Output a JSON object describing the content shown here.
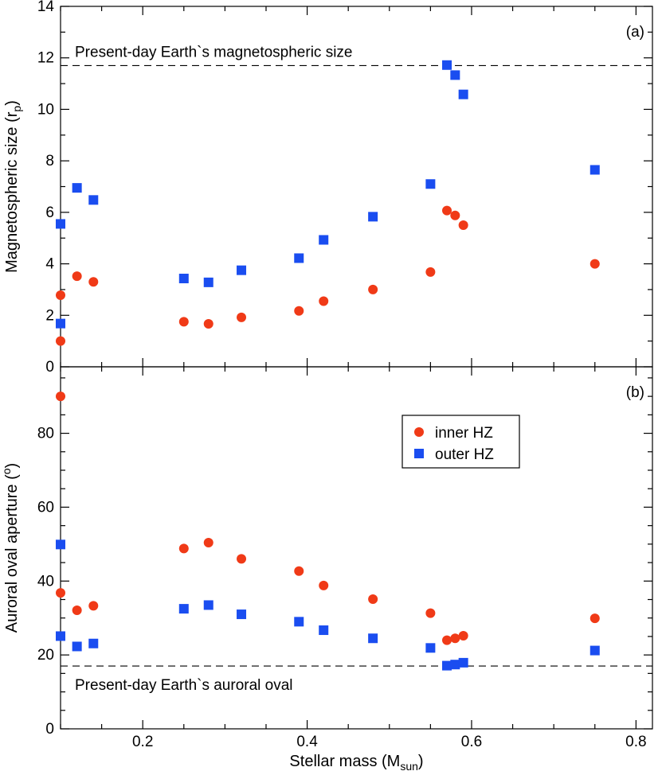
{
  "chart_data": [
    {
      "panel": "(a)",
      "type": "scatter",
      "ylabel": "Magnetospheric size (r",
      "ylabel_sub": "p",
      "ylabel_tail": ")",
      "xlim": [
        0.1,
        0.82
      ],
      "ylim": [
        0,
        14
      ],
      "yticks": [
        0,
        2,
        4,
        6,
        8,
        10,
        12,
        14
      ],
      "yticks_minor": [
        1,
        3,
        5,
        7,
        9,
        11,
        13
      ],
      "reference": {
        "y": 11.7,
        "label": "Present-day Earth`s magnetospheric size"
      },
      "series": [
        {
          "name": "inner HZ",
          "marker": "circle",
          "color": "#F03A17",
          "points": [
            [
              0.1,
              1.0
            ],
            [
              0.1,
              2.78
            ],
            [
              0.12,
              3.52
            ],
            [
              0.14,
              3.3
            ],
            [
              0.25,
              1.75
            ],
            [
              0.28,
              1.67
            ],
            [
              0.32,
              1.92
            ],
            [
              0.39,
              2.17
            ],
            [
              0.42,
              2.55
            ],
            [
              0.48,
              3.0
            ],
            [
              0.55,
              3.68
            ],
            [
              0.57,
              6.07
            ],
            [
              0.58,
              5.88
            ],
            [
              0.59,
              5.5
            ],
            [
              0.75,
              4.0
            ]
          ]
        },
        {
          "name": "outer HZ",
          "marker": "square",
          "color": "#1A4DF0",
          "points": [
            [
              0.1,
              1.68
            ],
            [
              0.1,
              5.55
            ],
            [
              0.12,
              6.95
            ],
            [
              0.14,
              6.48
            ],
            [
              0.25,
              3.43
            ],
            [
              0.28,
              3.28
            ],
            [
              0.32,
              3.75
            ],
            [
              0.39,
              4.22
            ],
            [
              0.42,
              4.93
            ],
            [
              0.48,
              5.83
            ],
            [
              0.55,
              7.1
            ],
            [
              0.57,
              11.72
            ],
            [
              0.58,
              11.33
            ],
            [
              0.59,
              10.58
            ],
            [
              0.75,
              7.65
            ]
          ]
        }
      ]
    },
    {
      "panel": "(b)",
      "type": "scatter",
      "xlabel": "Stellar mass (M",
      "xlabel_sub": "sun",
      "xlabel_tail": ")",
      "ylabel": "Auroral oval aperture (",
      "ylabel_sup": "o",
      "ylabel_tail": ")",
      "xlim": [
        0.1,
        0.82
      ],
      "ylim": [
        0,
        98
      ],
      "xticks": [
        0.2,
        0.4,
        0.6,
        0.8
      ],
      "xtick_labels": [
        "0.2",
        "0.4",
        "0.6",
        "0.8"
      ],
      "xticks_minor": [
        0.1,
        0.15,
        0.25,
        0.3,
        0.35,
        0.45,
        0.5,
        0.55,
        0.65,
        0.7,
        0.75
      ],
      "yticks": [
        0,
        20,
        40,
        60,
        80
      ],
      "yticks_minor": [
        5,
        10,
        15,
        25,
        30,
        35,
        45,
        50,
        55,
        65,
        70,
        75,
        85,
        90,
        95
      ],
      "reference": {
        "y": 17.0,
        "label": "Present-day Earth`s auroral oval"
      },
      "legend": {
        "position": "upper-right",
        "entries": [
          "inner HZ",
          "outer HZ"
        ]
      },
      "series": [
        {
          "name": "inner HZ",
          "marker": "circle",
          "color": "#F03A17",
          "points": [
            [
              0.1,
              90.0
            ],
            [
              0.1,
              36.8
            ],
            [
              0.12,
              32.1
            ],
            [
              0.14,
              33.3
            ],
            [
              0.25,
              48.8
            ],
            [
              0.28,
              50.4
            ],
            [
              0.32,
              46.0
            ],
            [
              0.39,
              42.7
            ],
            [
              0.42,
              38.8
            ],
            [
              0.48,
              35.1
            ],
            [
              0.55,
              31.3
            ],
            [
              0.57,
              24.0
            ],
            [
              0.58,
              24.5
            ],
            [
              0.59,
              25.2
            ],
            [
              0.75,
              29.9
            ]
          ]
        },
        {
          "name": "outer HZ",
          "marker": "square",
          "color": "#1A4DF0",
          "points": [
            [
              0.1,
              49.9
            ],
            [
              0.1,
              25.1
            ],
            [
              0.12,
              22.3
            ],
            [
              0.14,
              23.1
            ],
            [
              0.25,
              32.5
            ],
            [
              0.28,
              33.5
            ],
            [
              0.32,
              31.0
            ],
            [
              0.39,
              29.0
            ],
            [
              0.42,
              26.7
            ],
            [
              0.48,
              24.5
            ],
            [
              0.55,
              21.9
            ],
            [
              0.57,
              17.1
            ],
            [
              0.58,
              17.4
            ],
            [
              0.59,
              17.9
            ],
            [
              0.75,
              21.2
            ]
          ]
        }
      ]
    }
  ]
}
